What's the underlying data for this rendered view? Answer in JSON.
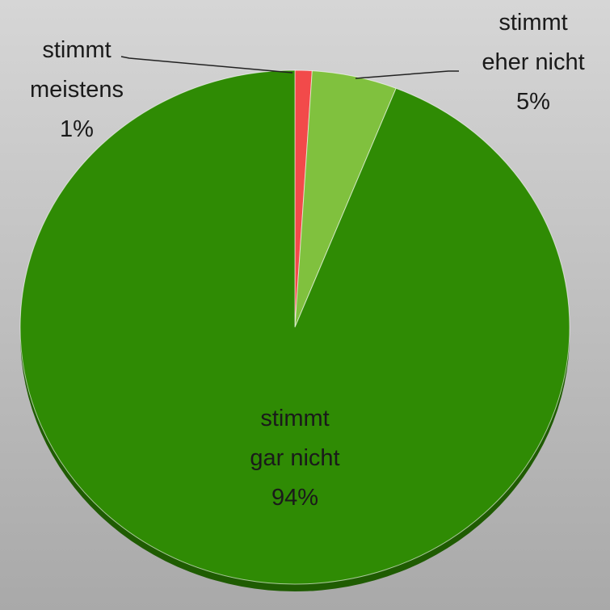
{
  "chart_data": {
    "type": "pie",
    "categories": [
      "stimmt meistens",
      "stimmt eher nicht",
      "stimmt gar nicht"
    ],
    "values": [
      1,
      5,
      94
    ],
    "value_labels": [
      "1%",
      "5%",
      "94%"
    ],
    "colors": [
      "#f24a4a",
      "#80c13e",
      "#2f8b04"
    ]
  }
}
